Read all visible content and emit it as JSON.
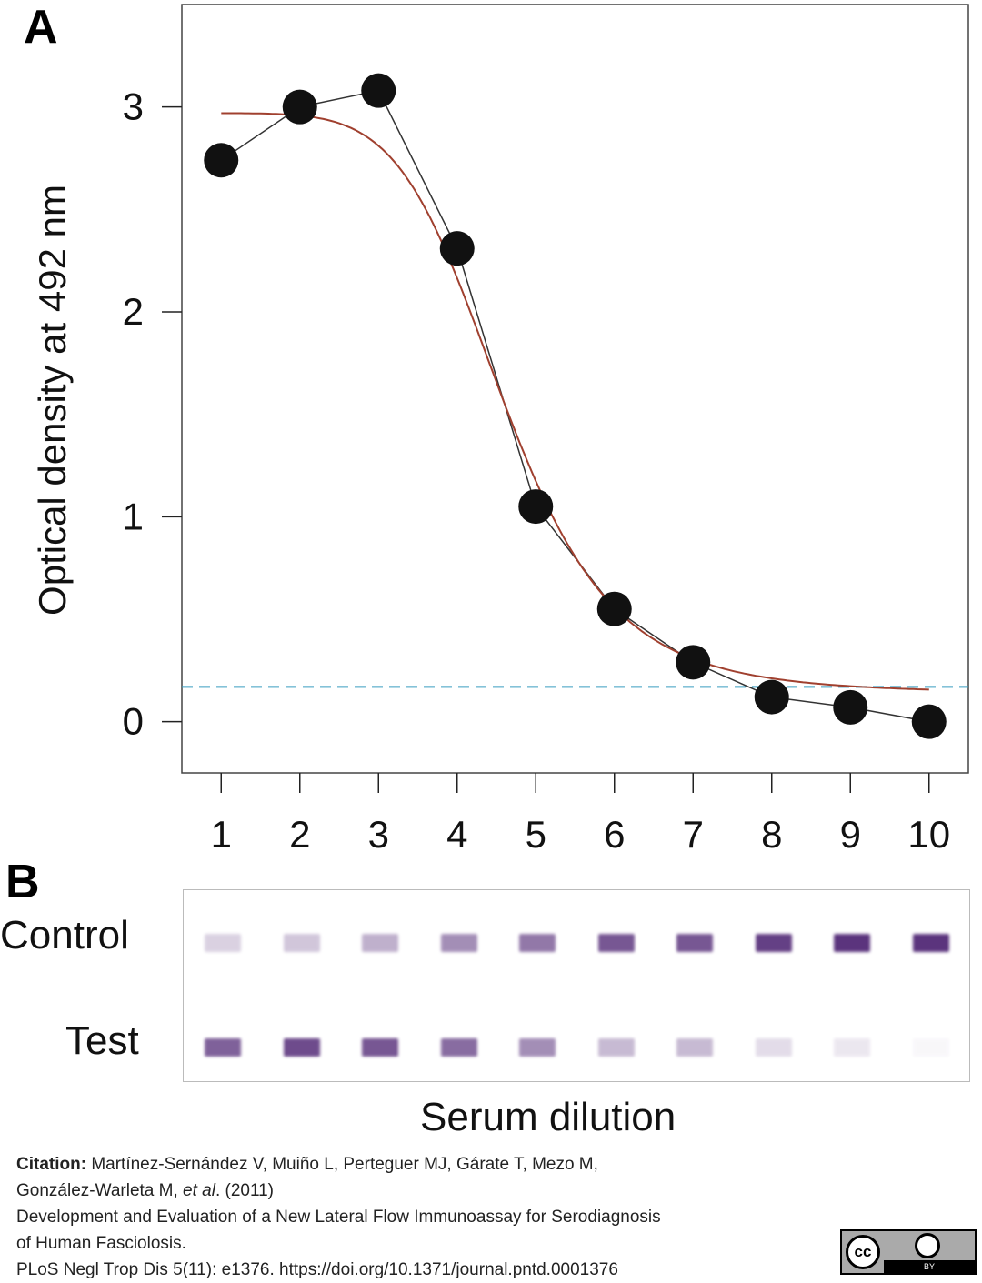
{
  "chart_data": {
    "type": "scatter",
    "panel_label": "A",
    "ylabel": "Optical density at  492 nm",
    "xlabel": "Serum dilution",
    "xlim": [
      0.5,
      10.5
    ],
    "ylim": [
      -0.25,
      3.5
    ],
    "xticks": [
      "1",
      "2",
      "3",
      "4",
      "5",
      "6",
      "7",
      "8",
      "9",
      "10"
    ],
    "yticks": [
      "0",
      "1",
      "2",
      "3"
    ],
    "grid": false,
    "series": [
      {
        "x": [
          1,
          2,
          3,
          4,
          5,
          6,
          7,
          8,
          9,
          10
        ],
        "y": [
          2.74,
          3.0,
          3.08,
          2.31,
          1.05,
          0.55,
          0.29,
          0.12,
          0.07,
          0.0
        ],
        "marker": "filled-circle",
        "connected": true,
        "color": "#111111"
      }
    ],
    "fit_curve": {
      "model": "4-parameter logistic",
      "top": 2.97,
      "bottom": 0.14,
      "midpoint": 4.6,
      "slope": 3.3,
      "color": "#a0402f"
    },
    "cutoff_line": {
      "y": 0.17,
      "style": "dashed",
      "color": "#3a9ec0"
    }
  },
  "strip_panel": {
    "panel_label": "B",
    "rows": [
      {
        "label": "Control",
        "intensity": [
          0.2,
          0.25,
          0.35,
          0.5,
          0.6,
          0.75,
          0.75,
          0.85,
          0.9,
          0.9
        ]
      },
      {
        "label": "Test",
        "intensity": [
          0.7,
          0.8,
          0.75,
          0.65,
          0.5,
          0.3,
          0.3,
          0.15,
          0.1,
          0.03
        ]
      }
    ],
    "band_color": "#4a1f70"
  },
  "citation": {
    "label": "Citation:",
    "line1": " Martínez-Sernández V, Muiño L, Perteguer MJ, Gárate T, Mezo M,",
    "line2a": "González-Warleta M, ",
    "line2b": "et al",
    "line2c": ". (2011)",
    "line3": "Development and Evaluation of a New Lateral Flow Immunoassay for Serodiagnosis",
    "line4": "of Human Fasciolosis.",
    "line5": "PLoS Negl Trop Dis 5(11): e1376. https://doi.org/10.1371/journal.pntd.0001376"
  },
  "license_badge": {
    "icon": "cc-by-icon",
    "text": "cc",
    "by": "BY"
  }
}
